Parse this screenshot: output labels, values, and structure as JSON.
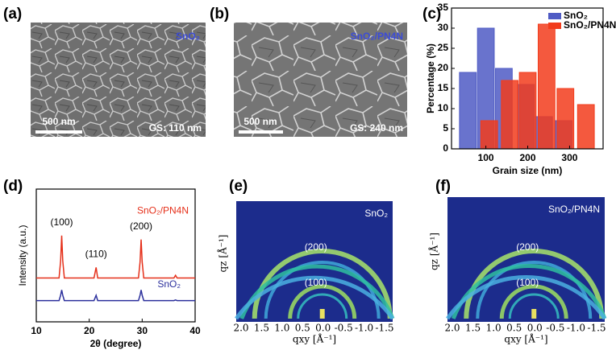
{
  "chart_data": [
    {
      "type": "bar",
      "x_label": "Grain size (nm)",
      "y_label": "Percentage (%)",
      "xlim": [
        18,
        380
      ],
      "xticks": [
        100,
        200,
        300
      ],
      "ylim": [
        0,
        35
      ],
      "yticks": [
        0,
        5,
        10,
        15,
        20,
        25,
        30,
        35
      ],
      "legend": "upper right",
      "series": [
        {
          "name": "SnO₂",
          "color": "#4f5bc4",
          "x": [
            57,
            100,
            143,
            196,
            239,
            286
          ],
          "values": [
            19,
            30,
            20,
            16,
            8,
            7
          ]
        },
        {
          "name": "SnO₂/PN4N",
          "color": "#f23c1c",
          "x": [
            108,
            157,
            200,
            245,
            290,
            339
          ],
          "values": [
            7,
            17,
            19,
            31,
            15,
            11
          ]
        }
      ]
    },
    {
      "type": "line",
      "x_label": "2θ (degree)",
      "y_label": "Intensity (a.u.)",
      "xlim": [
        10,
        40
      ],
      "xticks": [
        10,
        20,
        30,
        40
      ],
      "ylim": [
        0,
        10
      ],
      "x": [
        10,
        14.3,
        14.6,
        14.8,
        15.0,
        15.3,
        20.9,
        21.3,
        21.6,
        29.3,
        29.6,
        29.8,
        30.0,
        30.3,
        36.0,
        36.3,
        36.6,
        40
      ],
      "series": [
        {
          "name": "SnO₂/PN4N",
          "color": "#e5301a",
          "values": [
            3.3,
            3.3,
            4.6,
            6.5,
            4.6,
            3.3,
            3.3,
            4.1,
            3.3,
            3.3,
            4.5,
            6.2,
            4.5,
            3.3,
            3.3,
            3.5,
            3.3,
            3.3
          ]
        },
        {
          "name": "SnO₂",
          "color": "#2b2f9c",
          "values": [
            1.6,
            1.6,
            2.0,
            2.4,
            2.0,
            1.6,
            1.6,
            2.0,
            1.6,
            1.6,
            2.0,
            2.4,
            2.0,
            1.6,
            1.6,
            1.65,
            1.6,
            1.6
          ]
        }
      ],
      "annotations": [
        {
          "text": "(100)",
          "x": 14.8
        },
        {
          "text": "(110)",
          "x": 21.3
        },
        {
          "text": "(200)",
          "x": 29.8
        }
      ]
    }
  ],
  "panel_labels": [
    "(a)",
    "(b)",
    "(c)",
    "(d)",
    "(e)",
    "(f)"
  ],
  "sem_images": [
    {
      "label": "SnO₂",
      "scale_bar": "500 nm",
      "grain_size": "GS: 110 nm"
    },
    {
      "label": "SnO₂/PN4N",
      "scale_bar": "500 nm",
      "grain_size": "GS: 240 nm"
    }
  ],
  "giwaxs_images": [
    {
      "label": "SnO₂",
      "peaks": [
        "(200)",
        "(100)"
      ],
      "x_label": "qxy [Å⁻¹]",
      "y_label": "qz [Å⁻¹]",
      "x_ticks": [
        "2.0",
        "1.5",
        "1.0",
        "0.5",
        "0.0",
        "-0.5",
        "-1.0",
        "-1.5"
      ]
    },
    {
      "label": "SnO₂/PN4N",
      "peaks": [
        "(200)",
        "(100)"
      ],
      "x_label": "qxy [Å⁻¹]",
      "y_label": "qz [Å⁻¹]",
      "x_ticks": [
        "2.0",
        "1.5",
        "1.0",
        "0.5",
        "0.0",
        "-0.5",
        "-1.0",
        "-1.5"
      ]
    }
  ]
}
